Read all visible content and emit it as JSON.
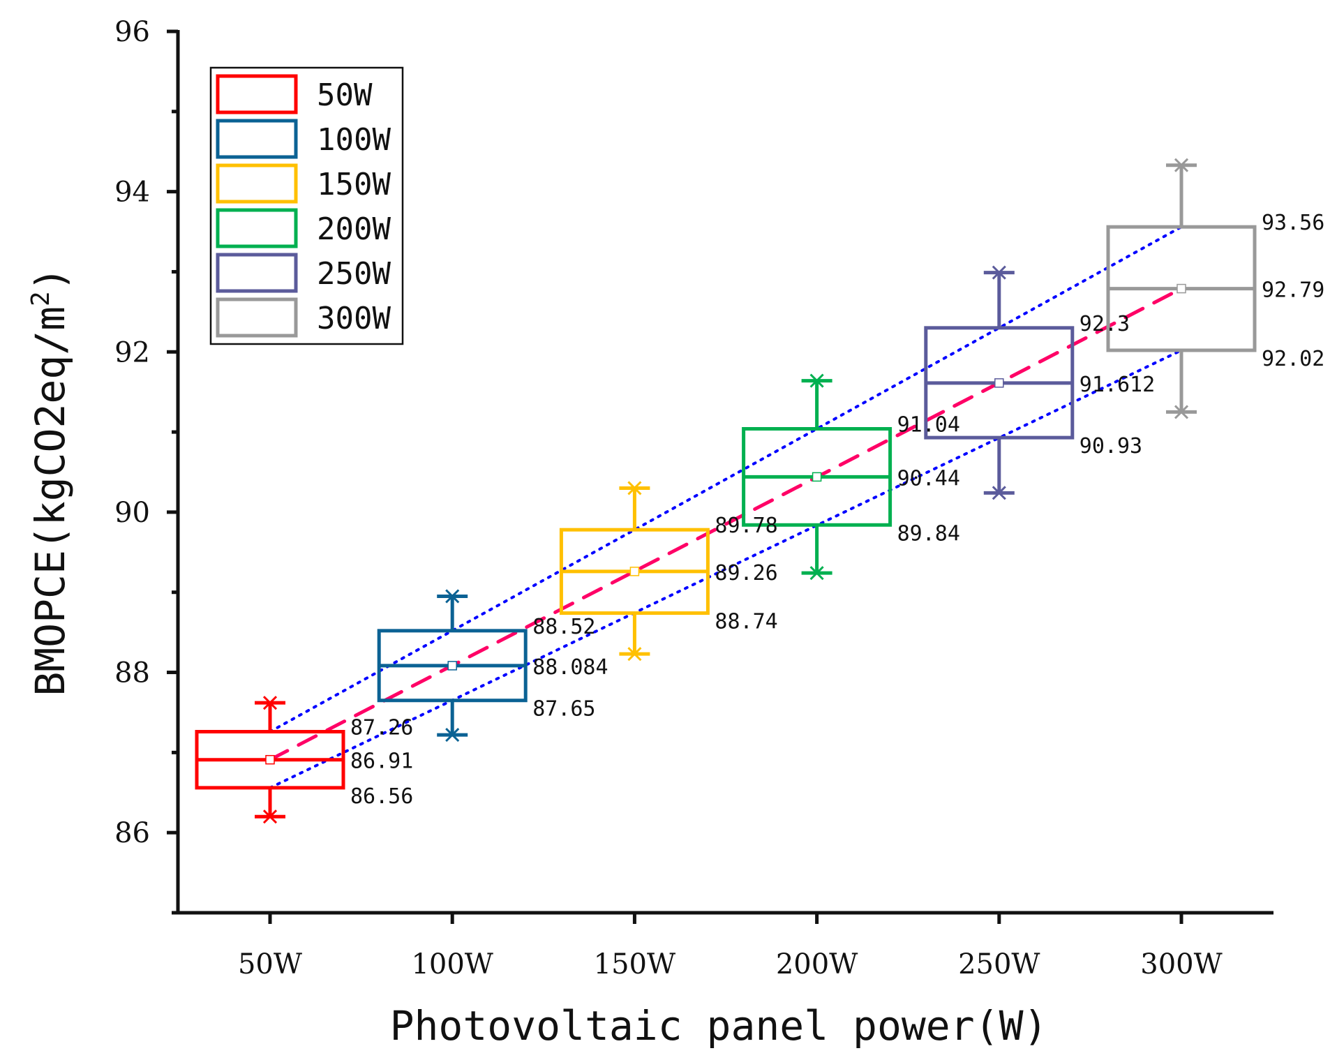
{
  "chart_data": {
    "type": "box",
    "xlabel": "Photovoltaic panel power(W)",
    "ylabel": "BMOPCE(kgCO2eq/m",
    "ylabel_superscript": "2",
    "ylabel_close": ")",
    "ylim": [
      85,
      96
    ],
    "yticks": [
      86,
      88,
      90,
      92,
      94,
      96
    ],
    "categories": [
      "50W",
      "100W",
      "150W",
      "200W",
      "250W",
      "300W"
    ],
    "legend": {
      "placement": "top-left"
    },
    "series": [
      {
        "name": "50W",
        "color": "#ff0000",
        "whisker_low": 86.2,
        "q1": 86.56,
        "median": 86.91,
        "q3": 87.26,
        "whisker_high": 87.62,
        "mean": 86.91,
        "labels": {
          "q3": "87.26",
          "median": "86.91",
          "q1": "86.56"
        }
      },
      {
        "name": "100W",
        "color": "#0b6294",
        "whisker_low": 87.22,
        "q1": 87.65,
        "median": 88.084,
        "q3": 88.52,
        "whisker_high": 88.95,
        "mean": 88.084,
        "labels": {
          "q3": "88.52",
          "median": "88.084",
          "q1": "87.65"
        }
      },
      {
        "name": "150W",
        "color": "#ffc000",
        "whisker_low": 88.23,
        "q1": 88.74,
        "median": 89.26,
        "q3": 89.78,
        "whisker_high": 90.3,
        "mean": 89.26,
        "labels": {
          "q3": "89.78",
          "median": "89.26",
          "q1": "88.74"
        }
      },
      {
        "name": "200W",
        "color": "#00b050",
        "whisker_low": 89.24,
        "q1": 89.84,
        "median": 90.44,
        "q3": 91.04,
        "whisker_high": 91.64,
        "mean": 90.44,
        "labels": {
          "q3": "91.04",
          "median": "90.44",
          "q1": "89.84"
        }
      },
      {
        "name": "250W",
        "color": "#5b5b9b",
        "whisker_low": 90.24,
        "q1": 90.93,
        "median": 91.612,
        "q3": 92.3,
        "whisker_high": 92.99,
        "mean": 91.612,
        "labels": {
          "q3": "92.3",
          "median": "91.612",
          "q1": "90.93"
        }
      },
      {
        "name": "300W",
        "color": "#999999",
        "whisker_low": 91.25,
        "q1": 92.02,
        "median": 92.79,
        "q3": 93.56,
        "whisker_high": 94.33,
        "mean": 92.79,
        "labels": {
          "q3": "93.56",
          "median": "92.79",
          "q1": "92.02"
        }
      }
    ],
    "trend_lines": [
      {
        "role": "q3-fit",
        "color": "#0000ff",
        "style": "dotted",
        "from": {
          "category": "50W",
          "y": 87.26
        },
        "to": {
          "category": "300W",
          "y": 93.56
        }
      },
      {
        "role": "q1-fit",
        "color": "#0000ff",
        "style": "dotted",
        "from": {
          "category": "50W",
          "y": 86.56
        },
        "to": {
          "category": "300W",
          "y": 92.02
        }
      },
      {
        "role": "median-fit",
        "color": "#ff0066",
        "style": "dashed",
        "from": {
          "category": "50W",
          "y": 86.91
        },
        "to": {
          "category": "300W",
          "y": 92.79
        }
      }
    ]
  }
}
